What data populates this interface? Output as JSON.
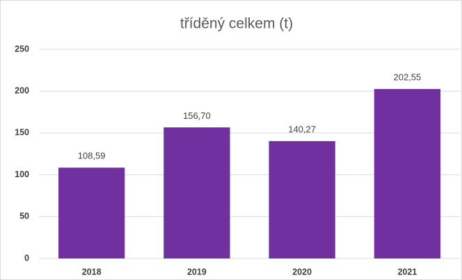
{
  "chart_data": {
    "type": "bar",
    "title": "tříděný celkem (t)",
    "categories": [
      "2018",
      "2019",
      "2020",
      "2021"
    ],
    "values": [
      108.59,
      156.7,
      140.27,
      202.55
    ],
    "value_labels": [
      "108,59",
      "156,70",
      "140,27",
      "202,55"
    ],
    "color": "#7030a0",
    "ylim": [
      0,
      250
    ],
    "yticks": [
      0,
      50,
      100,
      150,
      200,
      250
    ],
    "grid": true
  }
}
